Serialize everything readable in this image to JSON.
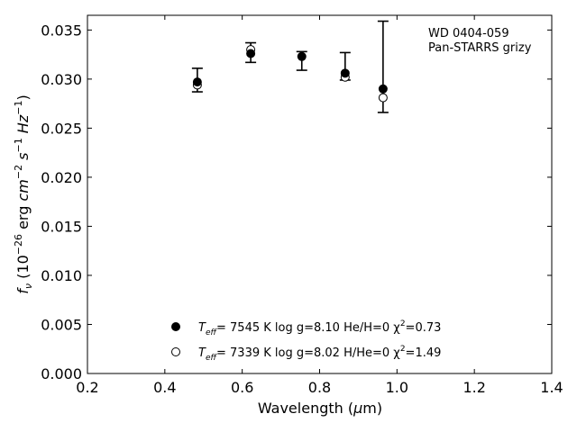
{
  "chart_data": {
    "type": "scatter",
    "xlabel_main": "Wavelength (",
    "xlabel_mu": "μ",
    "xlabel_unit": "m)",
    "ylabel": "f_ν (10^−26 erg cm^−2 s^−1 Hz^−1)",
    "xlim": [
      0.2,
      1.4
    ],
    "ylim": [
      0.0,
      0.0365
    ],
    "x_ticks": [
      "0.2",
      "0.4",
      "0.6",
      "0.8",
      "1.0",
      "1.2",
      "1.4"
    ],
    "y_ticks": [
      "0.000",
      "0.005",
      "0.010",
      "0.015",
      "0.020",
      "0.025",
      "0.030",
      "0.035"
    ],
    "annotation_line1": "WD 0404-059",
    "annotation_line2": "Pan-STARRS grizy",
    "observed": {
      "x": [
        0.484,
        0.622,
        0.754,
        0.866,
        0.964
      ],
      "y": [
        0.0297,
        0.0327,
        0.0324,
        0.0306,
        0.029
      ],
      "yerr_low": [
        0.0287,
        0.0317,
        0.0309,
        0.0299,
        0.0266
      ],
      "yerr_high": [
        0.0311,
        0.0337,
        0.0328,
        0.0327,
        0.0359
      ]
    },
    "series": [
      {
        "marker": "filled-circle",
        "teff_label": "T",
        "teff_sub": "eff",
        "params": "= 7545 K  log g=8.10  He/H=0  χ",
        "chi_sup": "2",
        "chi_val": "=0.73",
        "x": [
          0.484,
          0.622,
          0.754,
          0.866,
          0.964
        ],
        "y": [
          0.0297,
          0.0326,
          0.0323,
          0.0306,
          0.029
        ]
      },
      {
        "marker": "open-circle",
        "teff_label": "T",
        "teff_sub": "eff",
        "params": "= 7339 K  log g=8.02  H/He=0  χ",
        "chi_sup": "2",
        "chi_val": "=1.49",
        "x": [
          0.484,
          0.622,
          0.866,
          0.964
        ],
        "y": [
          0.0294,
          0.033,
          0.0302,
          0.0281
        ]
      }
    ]
  }
}
